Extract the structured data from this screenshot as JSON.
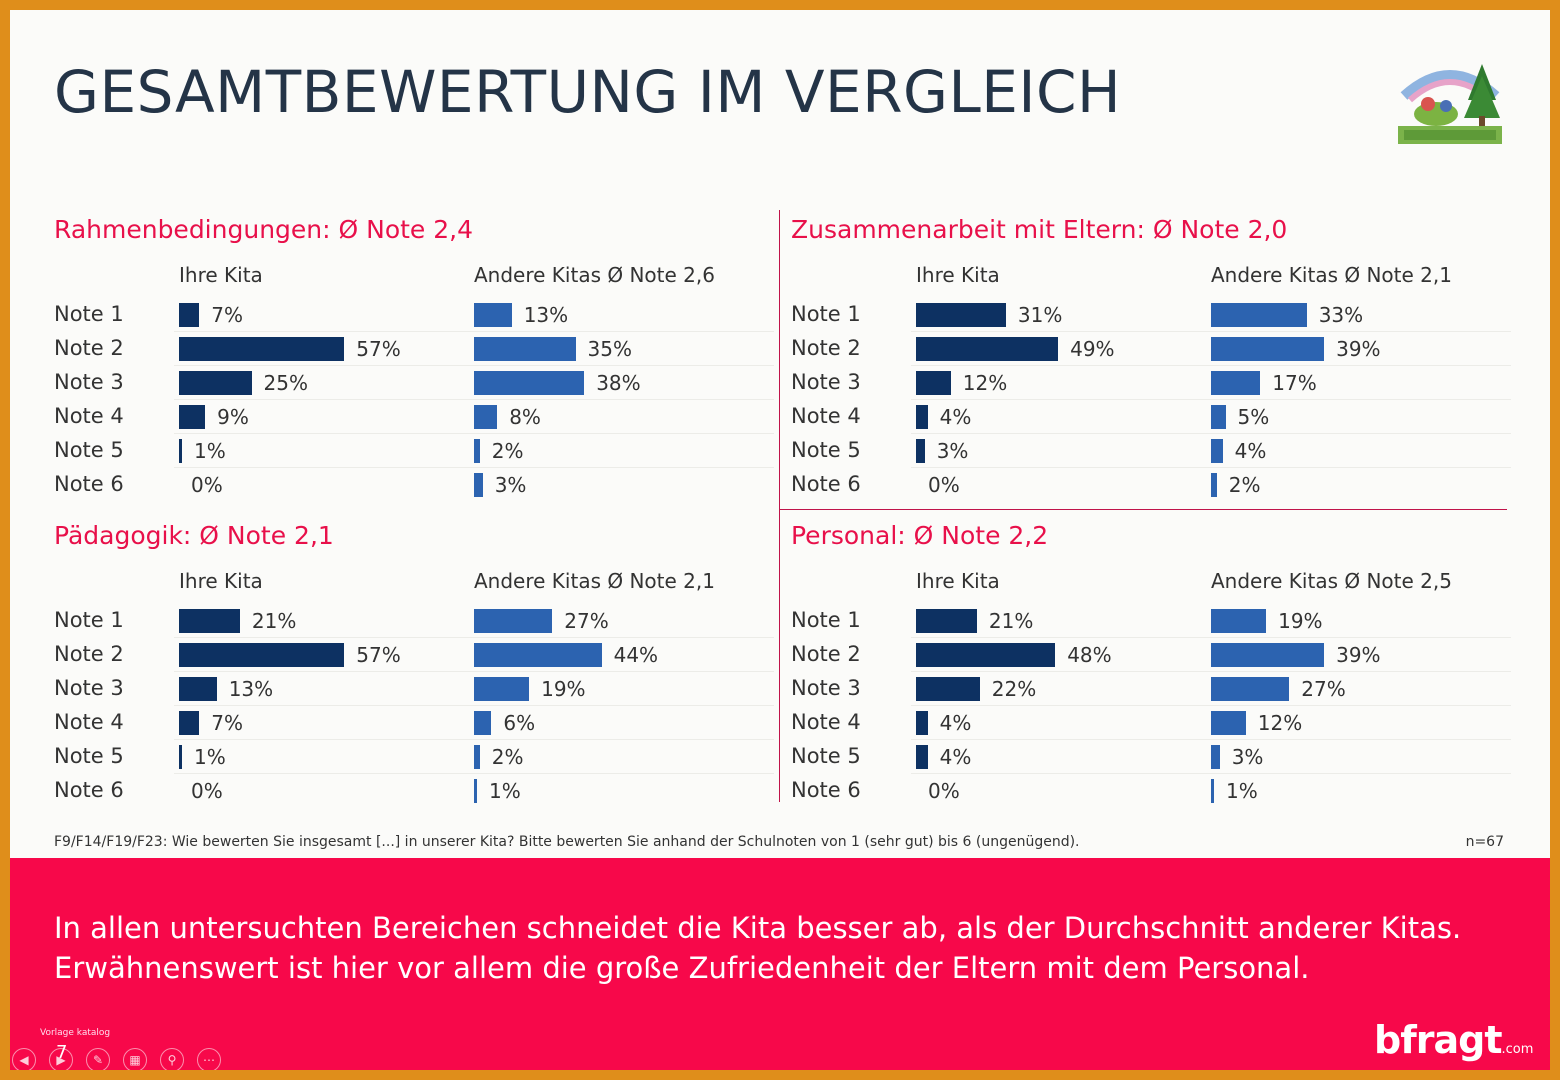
{
  "title": "GESAMTBEWERTUNG IM VERGLEICH",
  "footnote": "F9/F14/F19/F23: Wie bewerten Sie insgesamt [...] in unserer Kita? Bitte bewerten Sie anhand der Schulnoten von 1 (sehr gut)  bis 6 (ungenügend).",
  "n_count": "n=67",
  "summary_line1": "In allen untersuchten Bereichen schneidet die Kita besser ab, als der Durchschnitt anderer Kitas.",
  "summary_line2": "Erwähnenswert ist hier vor allem die große Zufriedenheit der Eltern mit dem Personal.",
  "brand_name": "bfragt",
  "brand_suffix": ".com",
  "catalog_label": "Vorlage katalog",
  "page_number": "7",
  "colors": {
    "own": "#0d3162",
    "other": "#2c63b0",
    "accent": "#e8104a",
    "banner": "#f7084a"
  },
  "toolbar_icons": [
    "prev-icon",
    "next-icon",
    "pen-icon",
    "slides-icon",
    "zoom-icon",
    "more-icon"
  ],
  "chart_data": [
    {
      "type": "bar",
      "title": "Rahmenbedingungen: Ø Note 2,4",
      "categories": [
        "Note 1",
        "Note 2",
        "Note 3",
        "Note 4",
        "Note 5",
        "Note 6"
      ],
      "series": [
        {
          "name": "Ihre Kita",
          "values": [
            7,
            57,
            25,
            9,
            1,
            0
          ],
          "labels": [
            "7%",
            "57%",
            "25%",
            "9%",
            "1%",
            "0%"
          ]
        },
        {
          "name": "Andere Kitas  Ø Note 2,6",
          "values": [
            13,
            35,
            38,
            8,
            2,
            3
          ],
          "labels": [
            "13%",
            "35%",
            "38%",
            "8%",
            "2%",
            "3%"
          ]
        }
      ]
    },
    {
      "type": "bar",
      "title": "Zusammenarbeit mit Eltern: Ø Note 2,0",
      "categories": [
        "Note 1",
        "Note 2",
        "Note 3",
        "Note 4",
        "Note 5",
        "Note 6"
      ],
      "series": [
        {
          "name": "Ihre Kita",
          "values": [
            31,
            49,
            12,
            4,
            3,
            0
          ],
          "labels": [
            "31%",
            "49%",
            "12%",
            "4%",
            "3%",
            "0%"
          ]
        },
        {
          "name": "Andere Kitas Ø Note 2,1",
          "values": [
            33,
            39,
            17,
            5,
            4,
            2
          ],
          "labels": [
            "33%",
            "39%",
            "17%",
            "5%",
            "4%",
            "2%"
          ]
        }
      ]
    },
    {
      "type": "bar",
      "title": "Pädagogik: Ø Note 2,1",
      "categories": [
        "Note 1",
        "Note 2",
        "Note 3",
        "Note 4",
        "Note 5",
        "Note 6"
      ],
      "series": [
        {
          "name": "Ihre Kita",
          "values": [
            21,
            57,
            13,
            7,
            1,
            0
          ],
          "labels": [
            "21%",
            "57%",
            "13%",
            "7%",
            "1%",
            "0%"
          ]
        },
        {
          "name": "Andere Kitas Ø Note 2,1",
          "values": [
            27,
            44,
            19,
            6,
            2,
            1
          ],
          "labels": [
            "27%",
            "44%",
            "19%",
            "6%",
            "2%",
            "1%"
          ]
        }
      ]
    },
    {
      "type": "bar",
      "title": "Personal: Ø Note 2,2",
      "categories": [
        "Note 1",
        "Note 2",
        "Note 3",
        "Note 4",
        "Note 5",
        "Note 6"
      ],
      "series": [
        {
          "name": "Ihre Kita",
          "values": [
            21,
            48,
            22,
            4,
            4,
            0
          ],
          "labels": [
            "21%",
            "48%",
            "22%",
            "4%",
            "4%",
            "0%"
          ]
        },
        {
          "name": "Andere Kitas Ø Note 2,5",
          "values": [
            19,
            39,
            27,
            12,
            3,
            1
          ],
          "labels": [
            "19%",
            "39%",
            "27%",
            "12%",
            "3%",
            "1%"
          ]
        }
      ]
    }
  ]
}
